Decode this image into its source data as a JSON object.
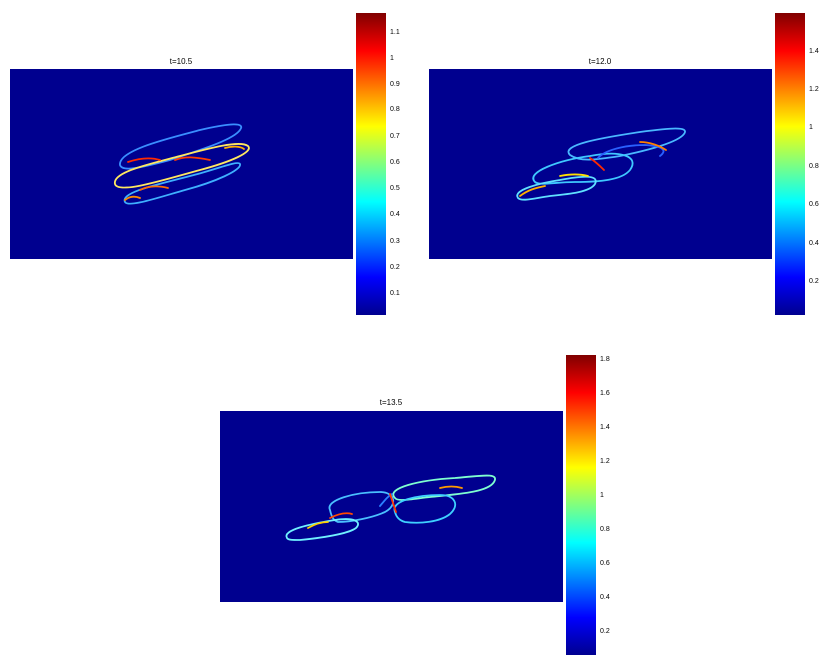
{
  "colormap": [
    "#00008f",
    "#0000ff",
    "#0080ff",
    "#00ffff",
    "#80ff80",
    "#ffff00",
    "#ff8000",
    "#ff0000",
    "#800000"
  ],
  "field_color": "#00008f",
  "chart_data": [
    {
      "type": "heatmap",
      "title": "t=10.5",
      "colorbar": {
        "range": [
          0,
          1.15
        ],
        "ticks": [
          "0.1",
          "0.2",
          "0.3",
          "0.4",
          "0.5",
          "0.6",
          "0.7",
          "0.8",
          "0.9",
          "1",
          "1.1"
        ]
      }
    },
    {
      "type": "heatmap",
      "title": "t=12.0",
      "colorbar": {
        "range": [
          0,
          1.58
        ],
        "ticks": [
          "0.2",
          "0.4",
          "0.6",
          "0.8",
          "1",
          "1.2",
          "1.4"
        ]
      }
    },
    {
      "type": "heatmap",
      "title": "t=13.5",
      "colorbar": {
        "range": [
          0,
          1.8
        ],
        "ticks": [
          "0.2",
          "0.4",
          "0.6",
          "0.8",
          "1",
          "1.2",
          "1.4",
          "1.6",
          "1.8"
        ]
      }
    }
  ]
}
